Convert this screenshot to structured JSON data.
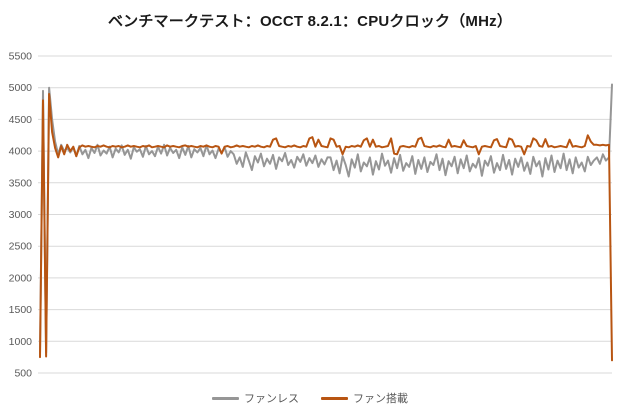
{
  "chart_data": {
    "type": "line",
    "title": "ベンチマークテスト：OCCT 8.2.1：CPUクロック（MHz）",
    "xlabel": "",
    "ylabel": "",
    "ylim": [
      500,
      5500
    ],
    "yticks": [
      5500,
      5000,
      4500,
      4000,
      3500,
      3000,
      2500,
      2000,
      1500,
      1000,
      500
    ],
    "grid": "horizontal-only",
    "legend_position": "bottom-center",
    "colors": {
      "fanless": "#969696",
      "fan": "#B85512",
      "gridline": "#D9D9D9",
      "axis_text": "#595959",
      "title_text": "#1A1A1A",
      "background": "#FFFFFF"
    },
    "series": [
      {
        "name": "ファンレス",
        "color_key": "fanless",
        "values": [
          800,
          4950,
          820,
          5000,
          4500,
          4150,
          3950,
          4100,
          4000,
          4050,
          3980,
          4060,
          3920,
          4080,
          3950,
          4020,
          3890,
          4050,
          3970,
          4100,
          3930,
          4010,
          3960,
          4070,
          3900,
          4040,
          3980,
          4090,
          3940,
          4020,
          3880,
          4060,
          3990,
          4030,
          3910,
          4080,
          3950,
          4000,
          3920,
          4070,
          3960,
          4100,
          3930,
          4050,
          3970,
          4020,
          3890,
          4060,
          3940,
          4080,
          3900,
          4030,
          3980,
          4050,
          3920,
          4090,
          3950,
          4010,
          3890,
          4040,
          3970,
          4060,
          3910,
          4000,
          3950,
          3800,
          3900,
          3750,
          3980,
          3850,
          3700,
          3920,
          3820,
          3960,
          3760,
          3880,
          3800,
          3940,
          3720,
          3900,
          3840,
          3970,
          3780,
          3860,
          3740,
          3910,
          3830,
          3950,
          3770,
          3890,
          3810,
          3930,
          3750,
          3870,
          3790,
          3900,
          3900,
          3700,
          3850,
          3650,
          3920,
          3780,
          3600,
          3870,
          3740,
          3950,
          3680,
          3820,
          3760,
          3900,
          3630,
          3840,
          3710,
          3960,
          3770,
          3850,
          3660,
          3890,
          3730,
          3940,
          3690,
          3810,
          3750,
          3920,
          3640,
          3860,
          3720,
          3900,
          3670,
          3830,
          3780,
          3950,
          3700,
          3880,
          3620,
          3840,
          3760,
          3910,
          3650,
          3870,
          3730,
          3930,
          3680,
          3800,
          3740,
          3890,
          3610,
          3850,
          3770,
          3920,
          3660,
          3810,
          3700,
          3940,
          3720,
          3860,
          3630,
          3880,
          3750,
          3900,
          3690,
          3820,
          3640,
          3910,
          3760,
          3840,
          3600,
          3890,
          3710,
          3930,
          3670,
          3850,
          3730,
          3960,
          3700,
          3870,
          3650,
          3900,
          3740,
          3820,
          3680,
          3910,
          3780,
          3850,
          3900,
          3800,
          3950,
          3850,
          3900,
          5050
        ]
      },
      {
        "name": "ファン搭載",
        "color_key": "fan",
        "values": [
          750,
          4800,
          760,
          4900,
          4300,
          4050,
          3900,
          4080,
          3950,
          4100,
          4000,
          4070,
          3920,
          4060,
          4090,
          4070,
          4080,
          4070,
          4060,
          4080,
          4070,
          4090,
          4070,
          4060,
          4080,
          4070,
          4080,
          4060,
          4070,
          4090,
          4070,
          4080,
          4070,
          4060,
          4080,
          4070,
          4090,
          4060,
          4070,
          4080,
          4070,
          4060,
          4090,
          4070,
          4080,
          4070,
          4060,
          4080,
          4090,
          4070,
          4080,
          4070,
          4060,
          4080,
          4070,
          4090,
          4070,
          4060,
          4080,
          4070,
          3960,
          4070,
          4080,
          4060,
          4070,
          4090,
          4070,
          4080,
          4070,
          4060,
          4080,
          4070,
          4090,
          4070,
          4060,
          4080,
          4070,
          4180,
          4200,
          4080,
          4070,
          4060,
          4080,
          4070,
          4090,
          4070,
          4060,
          4080,
          4070,
          4200,
          4220,
          4070,
          4180,
          4080,
          4070,
          4060,
          4200,
          4180,
          4070,
          4080,
          3950,
          4070,
          4060,
          4080,
          4070,
          4090,
          4070,
          4170,
          4200,
          4070,
          4180,
          4070,
          4080,
          4060,
          4070,
          4080,
          4200,
          3960,
          3950,
          4070,
          4080,
          4070,
          4060,
          4080,
          4070,
          4190,
          4210,
          4080,
          4070,
          4060,
          4080,
          4070,
          4090,
          4070,
          4060,
          4180,
          4070,
          4080,
          4070,
          4060,
          4170,
          4080,
          4070,
          4060,
          4080,
          3950,
          4070,
          4080,
          4070,
          4060,
          4170,
          4190,
          4080,
          4070,
          4060,
          4200,
          4180,
          4070,
          4080,
          4070,
          3950,
          4080,
          4070,
          4200,
          4170,
          4080,
          4070,
          4190,
          4070,
          4080,
          4060,
          4070,
          4080,
          4070,
          4060,
          4180,
          4070,
          4080,
          4070,
          4060,
          4080,
          4250,
          4150,
          4100,
          4100,
          4090,
          4100,
          4090,
          4100,
          700
        ]
      }
    ]
  }
}
